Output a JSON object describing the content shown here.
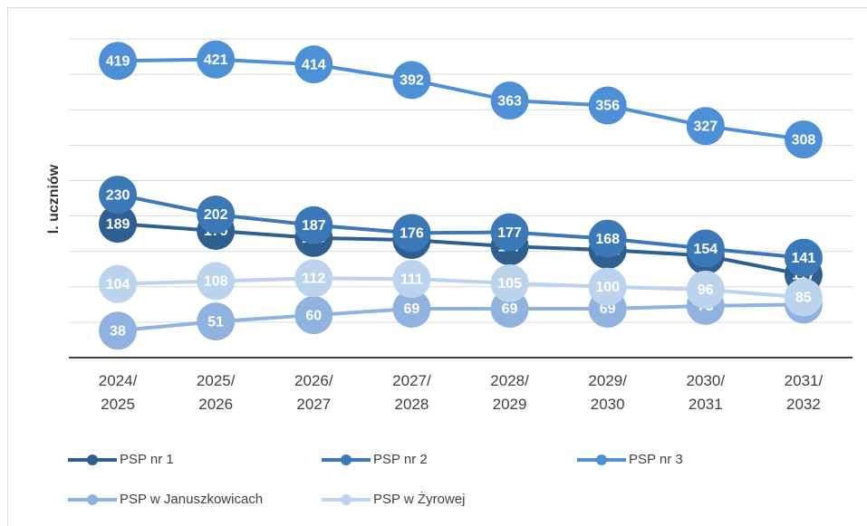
{
  "chart_data": {
    "type": "line",
    "y_label": "l. uczniów",
    "categories": [
      "2024/ 2025",
      "2025/ 2026",
      "2026/ 2027",
      "2027/ 2028",
      "2028/ 2029",
      "2029/ 2030",
      "2030/ 2031",
      "2031/ 2032"
    ],
    "series": [
      {
        "name": "PSP nr 1",
        "color": "#2f5f8f",
        "values": [
          189,
          179,
          169,
          166,
          157,
          152,
          144,
          117
        ]
      },
      {
        "name": "PSP nr 2",
        "color": "#3b78b8",
        "values": [
          230,
          202,
          187,
          176,
          177,
          168,
          154,
          141
        ]
      },
      {
        "name": "PSP nr 3",
        "color": "#4d90d6",
        "values": [
          419,
          421,
          414,
          392,
          363,
          356,
          327,
          308
        ]
      },
      {
        "name": "PSP w Januszkowicach",
        "color": "#8fb2de",
        "values": [
          38,
          51,
          60,
          69,
          69,
          69,
          73,
          75
        ]
      },
      {
        "name": "PSP w Żyrowej",
        "color": "#bcd3ee",
        "values": [
          104,
          108,
          112,
          111,
          105,
          100,
          96,
          85
        ]
      }
    ],
    "ylim": [
      0,
      450
    ],
    "yticks": [
      0,
      50,
      100,
      150,
      200,
      250,
      300,
      350,
      400,
      450
    ],
    "grid": true
  }
}
